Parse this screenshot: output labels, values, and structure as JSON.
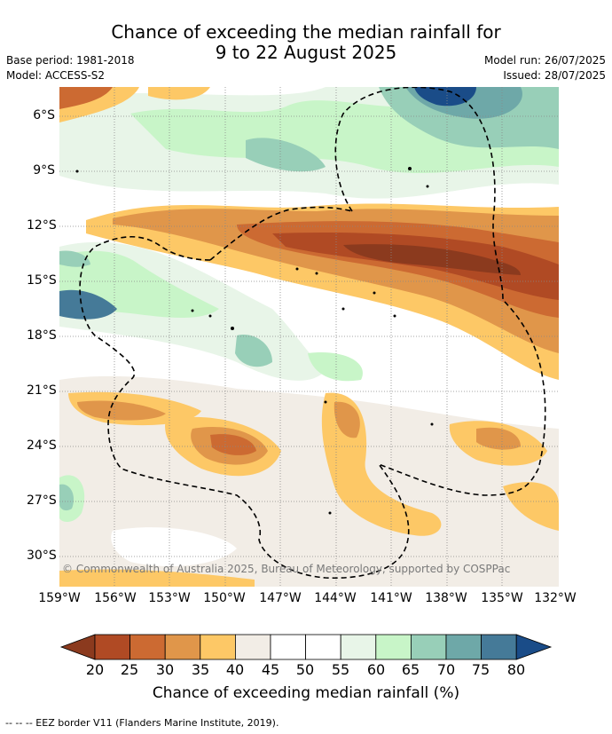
{
  "title_line1": "Chance of exceeding the median rainfall for",
  "title_line2": "9 to 22 August 2025",
  "meta": {
    "base_period": "Base period: 1981-2018",
    "model": "Model: ACCESS-S2",
    "model_run": "Model run: 26/07/2025",
    "issued": "Issued: 28/07/2025"
  },
  "copyright": "© Commonwealth of Australia 2025, Bureau of Meteorology, supported by COSPPac",
  "x_ticks": [
    "159°W",
    "156°W",
    "153°W",
    "150°W",
    "147°W",
    "144°W",
    "141°W",
    "138°W",
    "135°W",
    "132°W"
  ],
  "y_ticks": [
    "6°S",
    "9°S",
    "12°S",
    "15°S",
    "18°S",
    "21°S",
    "24°S",
    "27°S",
    "30°S"
  ],
  "colorbar": {
    "label": "Chance of exceeding median rainfall (%)",
    "ticks": [
      "20",
      "25",
      "30",
      "35",
      "40",
      "45",
      "50",
      "55",
      "60",
      "65",
      "70",
      "75",
      "80"
    ],
    "colors": [
      "#8b3a1e",
      "#b04a24",
      "#cc6a32",
      "#e0964a",
      "#fdc866",
      "#f2ede6",
      "#ffffff",
      "#ffffff",
      "#e8f5e8",
      "#c8f5c8",
      "#98cfb8",
      "#6ea8a8",
      "#457a98",
      "#1a4c88"
    ]
  },
  "footer": "-- -- -- EEZ border V11 (Flanders Marine Institute, 2019)."
}
